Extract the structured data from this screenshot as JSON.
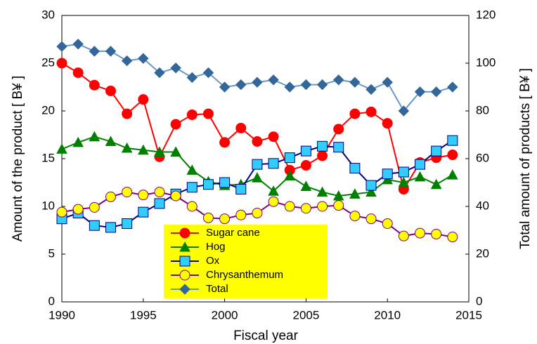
{
  "chart_data": {
    "type": "line",
    "xlabel": "Fiscal year",
    "ylabel": "Amount of the product [ B¥ ]",
    "y2label": "Total amount of products [ B¥ ]",
    "x": [
      1990,
      1991,
      1992,
      1993,
      1994,
      1995,
      1996,
      1997,
      1998,
      1999,
      2000,
      2001,
      2002,
      2003,
      2004,
      2005,
      2006,
      2007,
      2008,
      2009,
      2010,
      2011,
      2012,
      2013,
      2014
    ],
    "xlim": [
      1990,
      2015
    ],
    "xticks": [
      1990,
      1995,
      2000,
      2005,
      2010,
      2015
    ],
    "ylim": [
      0,
      30
    ],
    "yticks": [
      0,
      5,
      10,
      15,
      20,
      25,
      30
    ],
    "y2lim": [
      0,
      120
    ],
    "y2ticks": [
      0,
      20,
      40,
      60,
      80,
      100,
      120
    ],
    "grid": false,
    "legend_position": "bottom",
    "series": [
      {
        "name": "Sugar cane",
        "color": "#ff0000",
        "line_color": "#ff0000",
        "marker": "circle",
        "values": [
          25.0,
          24.0,
          22.7,
          22.1,
          19.7,
          21.2,
          15.2,
          18.6,
          19.6,
          19.7,
          16.7,
          18.2,
          16.8,
          17.3,
          13.8,
          14.3,
          15.3,
          18.1,
          19.7,
          19.9,
          18.7,
          11.8,
          14.6,
          15.1,
          15.4
        ]
      },
      {
        "name": "Hog",
        "color": "#008000",
        "line_color": "#008000",
        "marker": "triangle",
        "values": [
          16.0,
          16.7,
          17.3,
          16.8,
          16.1,
          15.9,
          15.7,
          15.7,
          13.8,
          12.6,
          12.2,
          12.3,
          13.0,
          11.6,
          13.2,
          12.1,
          11.5,
          11.1,
          11.3,
          11.5,
          12.8,
          12.5,
          13.1,
          12.3,
          13.3
        ]
      },
      {
        "name": "Ox",
        "color": "#33ccff",
        "line_color": "#000080",
        "marker": "square",
        "values": [
          8.7,
          9.3,
          8.0,
          7.8,
          8.2,
          9.4,
          10.3,
          11.3,
          12.0,
          12.3,
          12.5,
          11.8,
          14.4,
          14.5,
          15.1,
          15.8,
          16.3,
          16.2,
          14.0,
          12.2,
          13.4,
          13.6,
          14.4,
          15.8,
          16.9
        ]
      },
      {
        "name": "Chrysanthemum",
        "color": "#ffff00",
        "line_color": "#800080",
        "marker": "circle",
        "values": [
          9.4,
          9.7,
          9.9,
          11.0,
          11.5,
          11.2,
          11.5,
          11.1,
          10.0,
          8.8,
          8.7,
          9.1,
          9.3,
          10.5,
          10.0,
          9.8,
          10.0,
          10.1,
          9.0,
          8.7,
          8.2,
          6.9,
          7.2,
          7.1,
          6.8
        ]
      },
      {
        "name": "Total",
        "color": "#336699",
        "line_color": "#6699cc",
        "marker": "diamond",
        "axis": "y2",
        "values": [
          107,
          108,
          105,
          105,
          101,
          102,
          96,
          98,
          94,
          96,
          90,
          91,
          92,
          93,
          90,
          91,
          91,
          93,
          92,
          89,
          92,
          80,
          88,
          88,
          90
        ]
      }
    ]
  }
}
